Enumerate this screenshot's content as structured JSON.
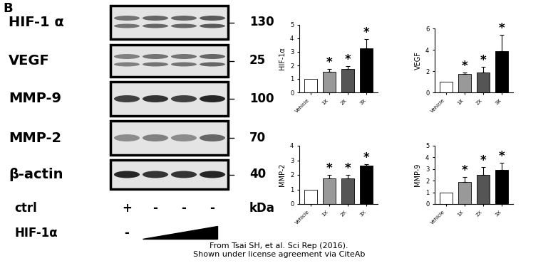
{
  "panel_label": "B",
  "blot": {
    "rows": [
      {
        "label": "HIF-1 α",
        "kda": 130
      },
      {
        "label": "VEGF",
        "kda": 25
      },
      {
        "label": "MMP-9",
        "kda": 100
      },
      {
        "label": "MMP-2",
        "kda": 70
      },
      {
        "label": "β-actin",
        "kda": 40
      }
    ],
    "kda_label": "kDa",
    "lane_rows": [
      {
        "label": "ctrl",
        "marks": [
          "+",
          "-",
          "-",
          "-"
        ]
      },
      {
        "label": "HIF-1α",
        "marks": [
          "-"
        ]
      }
    ]
  },
  "chart_data": [
    {
      "type": "bar",
      "y_label": "HIF-1α",
      "categories": [
        "Vehicle",
        "1X",
        "2X",
        "3X"
      ],
      "values": [
        1,
        1.55,
        1.75,
        3.25
      ],
      "errors": [
        null,
        0.2,
        0.2,
        0.7
      ],
      "significance": [
        null,
        "*",
        "*",
        "*"
      ],
      "colors": [
        "#ffffff",
        "#999999",
        "#555555",
        "#000000"
      ],
      "ylim": [
        0,
        5
      ],
      "yticks": [
        0,
        1,
        2,
        3,
        4,
        5
      ]
    },
    {
      "type": "bar",
      "y_label": "VEGF",
      "categories": [
        "Vehicle",
        "1X",
        "2X",
        "3X"
      ],
      "values": [
        1,
        1.75,
        1.9,
        3.9
      ],
      "errors": [
        null,
        0.1,
        0.5,
        1.5
      ],
      "significance": [
        null,
        "*",
        "*",
        "*"
      ],
      "colors": [
        "#ffffff",
        "#999999",
        "#555555",
        "#000000"
      ],
      "ylim": [
        0,
        6
      ],
      "yticks": [
        0,
        2,
        4,
        6
      ]
    },
    {
      "type": "bar",
      "y_label": "MMP-2",
      "categories": [
        "Vehicle",
        "1X",
        "2X",
        "3X"
      ],
      "values": [
        1,
        1.75,
        1.75,
        2.65
      ],
      "errors": [
        null,
        0.25,
        0.25,
        0.1
      ],
      "significance": [
        null,
        "*",
        "*",
        "*"
      ],
      "colors": [
        "#ffffff",
        "#999999",
        "#555555",
        "#000000"
      ],
      "ylim": [
        0,
        4
      ],
      "yticks": [
        0,
        1,
        2,
        3,
        4
      ]
    },
    {
      "type": "bar",
      "y_label": "MMP-9",
      "categories": [
        "Vehicle",
        "1X",
        "2X",
        "3X"
      ],
      "values": [
        1,
        1.9,
        2.5,
        2.9
      ],
      "errors": [
        null,
        0.4,
        0.65,
        0.65
      ],
      "significance": [
        null,
        "*",
        "*",
        "*"
      ],
      "colors": [
        "#ffffff",
        "#999999",
        "#555555",
        "#000000"
      ],
      "ylim": [
        0,
        5
      ],
      "yticks": [
        0,
        1,
        2,
        3,
        4,
        5
      ]
    }
  ],
  "credit": [
    "From Tsai SH, et al. Sci Rep (2016).",
    "Shown under license agreement via CiteAb"
  ]
}
